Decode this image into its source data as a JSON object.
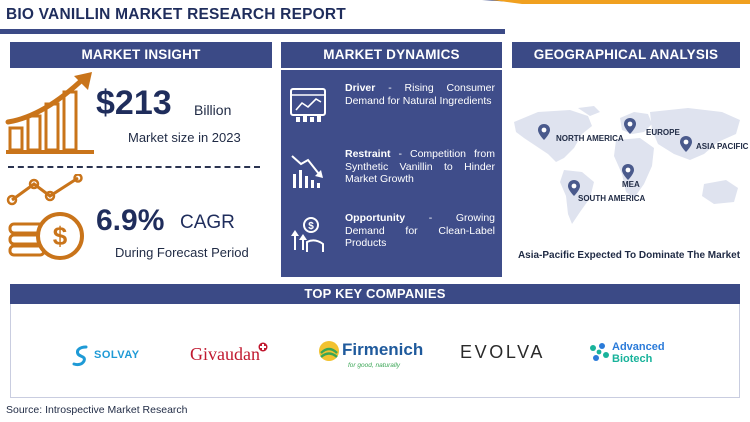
{
  "header": {
    "title": "BIO VANILLIN MARKET RESEARCH REPORT"
  },
  "market_insight": {
    "section_title": "MARKET INSIGHT",
    "market_size_value": "$213",
    "market_size_unit": "Billion",
    "market_size_caption": "Market size in 2023",
    "cagr_value": "6.9%",
    "cagr_label": "CAGR",
    "cagr_caption": "During Forecast Period"
  },
  "market_dynamics": {
    "section_title": "MARKET DYNAMICS",
    "items": [
      {
        "heading": "Driver",
        "text": " - Rising Consumer Demand for Natural Ingredients",
        "icon": "chart-analysis-icon"
      },
      {
        "heading": "Restraint",
        "text": " - Competition from Synthetic Vanillin to Hinder Market Growth",
        "icon": "declining-chart-icon"
      },
      {
        "heading": "Opportunity",
        "text": " - Growing Demand for Clean-Label Products",
        "icon": "growth-opportunity-icon"
      }
    ]
  },
  "geographical_analysis": {
    "section_title": "GEOGRAPHICAL ANALYSIS",
    "regions": [
      "NORTH AMERICA",
      "EUROPE",
      "ASIA PACIFIC",
      "MEA",
      "SOUTH AMERICA"
    ],
    "caption": "Asia-Pacific Expected To Dominate The Market"
  },
  "companies": {
    "section_title": "TOP KEY COMPANIES",
    "list": [
      "SOLVAY",
      "Givaudan",
      "Firmenich",
      "for good, naturally",
      "EVOLVA",
      "Advanced",
      "Biotech"
    ]
  },
  "source": "Source: Introspective Market Research",
  "colors": {
    "navy": "#3b4a86",
    "orange": "#c9741a",
    "panel": "#3f4d8a",
    "map": "#dfe3ef"
  }
}
